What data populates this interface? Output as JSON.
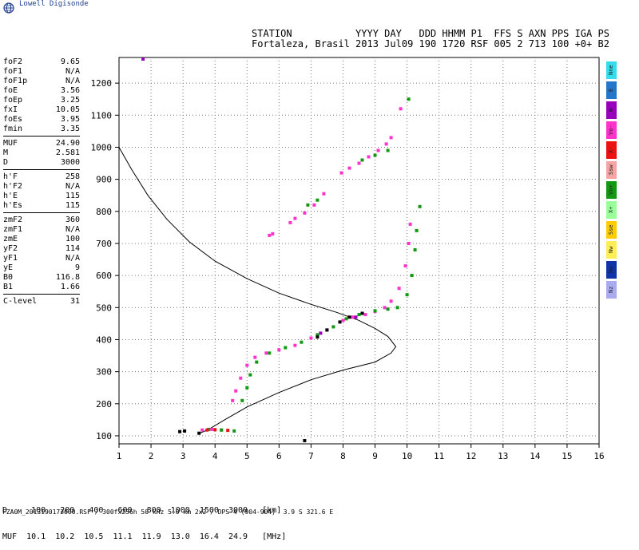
{
  "brand": {
    "name": "Lowell Digisonde",
    "logo_icon": "globe-logo-icon"
  },
  "header": {
    "line1": "STATION           YYYY DAY   DDD HHMM P1  FFS S AXN PPS IGA PS",
    "line2": "Fortaleza, Brasil 2013 Jul09 190 1720 RSF 005 2 713 100 +0+ B2"
  },
  "params": [
    [
      {
        "k": "foF2",
        "v": "9.65"
      },
      {
        "k": "foF1",
        "v": "N/A"
      },
      {
        "k": "foF1p",
        "v": "N/A"
      },
      {
        "k": "foE",
        "v": "3.56"
      },
      {
        "k": "foEp",
        "v": "3.25"
      },
      {
        "k": "fxI",
        "v": "10.05"
      },
      {
        "k": "foEs",
        "v": "3.95"
      },
      {
        "k": "fmin",
        "v": "3.35"
      }
    ],
    [
      {
        "k": "MUF",
        "v": "24.90"
      },
      {
        "k": "M",
        "v": "2.581"
      },
      {
        "k": "D",
        "v": "3000"
      }
    ],
    [
      {
        "k": "h'F",
        "v": "258"
      },
      {
        "k": "h'F2",
        "v": "N/A"
      },
      {
        "k": "h'E",
        "v": "115"
      },
      {
        "k": "h'Es",
        "v": "115"
      }
    ],
    [
      {
        "k": "zmF2",
        "v": "360"
      },
      {
        "k": "zmF1",
        "v": "N/A"
      },
      {
        "k": "zmE",
        "v": "100"
      },
      {
        "k": "yF2",
        "v": "114"
      },
      {
        "k": "yF1",
        "v": "N/A"
      },
      {
        "k": "yE",
        "v": "9"
      },
      {
        "k": "B0",
        "v": "116.8"
      },
      {
        "k": "B1",
        "v": "1.66"
      }
    ],
    [
      {
        "k": "C-level",
        "v": "31"
      }
    ]
  ],
  "legend": [
    {
      "label": "Nne",
      "color": "#33ddee"
    },
    {
      "label": "E",
      "color": "#2277cc"
    },
    {
      "label": "W",
      "color": "#9900bb"
    },
    {
      "label": "Vo-",
      "color": "#ff33cc"
    },
    {
      "label": "X-",
      "color": "#ee1111"
    },
    {
      "label": "Ssw",
      "color": "#f5a3a3"
    },
    {
      "label": "Vo+",
      "color": "#119911"
    },
    {
      "label": "X+",
      "color": "#99ff99"
    },
    {
      "label": "Sse",
      "color": "#ffcc00"
    },
    {
      "label": "Nw",
      "color": "#ffee55"
    },
    {
      "label": "Nw",
      "color": "#1133aa"
    },
    {
      "label": "Nz",
      "color": "#aaaaee"
    }
  ],
  "table": {
    "row1": "D     100   200   400   600   800  1000  1500  3000   [km]",
    "row2": "MUF  10.1  10.2  10.5  11.1  11.9  13.0  16.4  24.9   [MHz]"
  },
  "footer": "FZA0M_2013190172000.RSF / 300fx256h 50 kHz 5.0 km 2x2 / DPS-4 (904-904)  3.9 S 321.6 E",
  "chart_data": {
    "type": "scatter",
    "xlim": [
      1,
      16
    ],
    "ylim": [
      75,
      1280
    ],
    "x_ticks": [
      1,
      2,
      3,
      4,
      5,
      6,
      7,
      8,
      9,
      10,
      11,
      12,
      13,
      14,
      15,
      16
    ],
    "y_ticks": [
      100,
      200,
      300,
      400,
      500,
      600,
      700,
      800,
      900,
      1000,
      1100,
      1200
    ],
    "grid": true,
    "profile": [
      [
        1.0,
        1000
      ],
      [
        1.4,
        930
      ],
      [
        1.9,
        850
      ],
      [
        2.5,
        775
      ],
      [
        3.2,
        705
      ],
      [
        4.0,
        645
      ],
      [
        5.0,
        590
      ],
      [
        6.0,
        545
      ],
      [
        7.0,
        510
      ],
      [
        7.8,
        485
      ],
      [
        8.5,
        460
      ],
      [
        9.0,
        435
      ],
      [
        9.4,
        410
      ],
      [
        9.65,
        378
      ],
      [
        9.5,
        358
      ],
      [
        9.0,
        330
      ],
      [
        8.0,
        305
      ],
      [
        7.0,
        275
      ],
      [
        6.0,
        235
      ],
      [
        5.0,
        190
      ],
      [
        4.3,
        150
      ],
      [
        3.8,
        120
      ],
      [
        3.5,
        107
      ]
    ],
    "series": [
      {
        "color": "#ff33cc",
        "points": [
          [
            3.6,
            118
          ],
          [
            3.9,
            120
          ],
          [
            4.2,
            118
          ],
          [
            4.55,
            210
          ],
          [
            4.65,
            240
          ],
          [
            4.8,
            280
          ],
          [
            5.0,
            320
          ],
          [
            5.25,
            345
          ],
          [
            5.6,
            358
          ],
          [
            6.0,
            368
          ],
          [
            6.5,
            382
          ],
          [
            7.0,
            405
          ],
          [
            7.5,
            430
          ],
          [
            8.0,
            460
          ],
          [
            8.3,
            470
          ],
          [
            8.7,
            478
          ],
          [
            9.0,
            488
          ],
          [
            9.3,
            500
          ],
          [
            9.5,
            520
          ],
          [
            9.75,
            560
          ],
          [
            9.95,
            630
          ],
          [
            10.05,
            700
          ],
          [
            10.1,
            760
          ],
          [
            5.7,
            725
          ],
          [
            5.8,
            730
          ],
          [
            6.35,
            765
          ],
          [
            6.5,
            778
          ],
          [
            6.8,
            795
          ],
          [
            7.1,
            820
          ],
          [
            7.4,
            855
          ],
          [
            7.95,
            920
          ],
          [
            8.2,
            935
          ],
          [
            8.5,
            950
          ],
          [
            8.8,
            970
          ],
          [
            9.1,
            990
          ],
          [
            9.35,
            1010
          ],
          [
            9.5,
            1030
          ],
          [
            9.8,
            1120
          ]
        ]
      },
      {
        "color": "#119911",
        "points": [
          [
            3.8,
            120
          ],
          [
            4.2,
            118
          ],
          [
            4.6,
            115
          ],
          [
            4.85,
            210
          ],
          [
            5.0,
            250
          ],
          [
            5.1,
            290
          ],
          [
            5.3,
            330
          ],
          [
            5.7,
            358
          ],
          [
            6.2,
            375
          ],
          [
            6.7,
            392
          ],
          [
            7.2,
            415
          ],
          [
            7.7,
            440
          ],
          [
            8.1,
            465
          ],
          [
            8.5,
            478
          ],
          [
            9.0,
            490
          ],
          [
            9.4,
            495
          ],
          [
            9.7,
            500
          ],
          [
            10.0,
            540
          ],
          [
            10.15,
            600
          ],
          [
            10.25,
            680
          ],
          [
            10.3,
            740
          ],
          [
            10.4,
            815
          ],
          [
            6.9,
            820
          ],
          [
            7.2,
            835
          ],
          [
            8.6,
            960
          ],
          [
            9.0,
            975
          ],
          [
            9.4,
            990
          ],
          [
            10.05,
            1150
          ]
        ]
      },
      {
        "color": "#000000",
        "points": [
          [
            2.9,
            113
          ],
          [
            3.05,
            115
          ],
          [
            3.5,
            108
          ],
          [
            6.8,
            85
          ],
          [
            7.2,
            408
          ],
          [
            7.5,
            430
          ],
          [
            7.9,
            455
          ],
          [
            8.2,
            470
          ],
          [
            8.6,
            482
          ]
        ]
      },
      {
        "color": "#ee1111",
        "points": [
          [
            3.75,
            118
          ],
          [
            4.0,
            119
          ],
          [
            4.4,
            117
          ]
        ]
      },
      {
        "color": "#9900bb",
        "points": [
          [
            7.3,
            420
          ],
          [
            8.4,
            470
          ],
          [
            1.75,
            1275
          ]
        ]
      }
    ]
  }
}
